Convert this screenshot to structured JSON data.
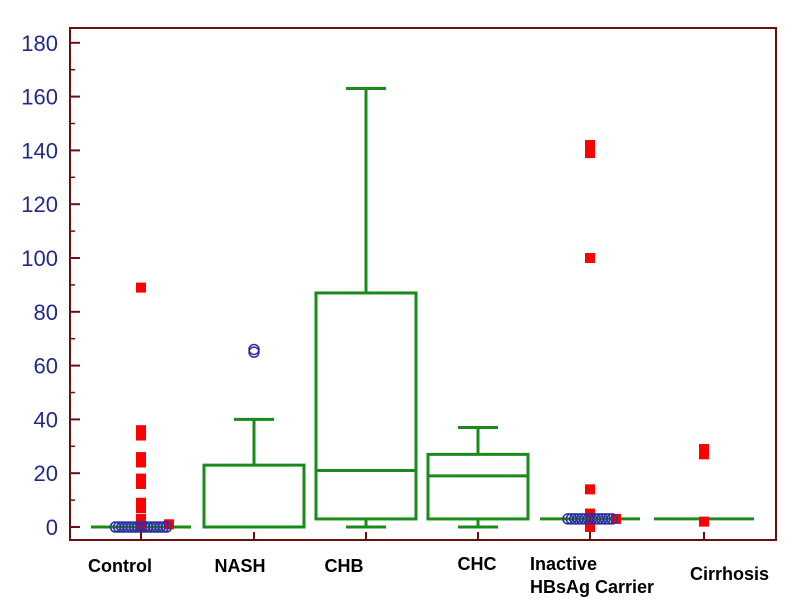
{
  "chart_data": {
    "type": "box",
    "categories": [
      "Control",
      "NASH",
      "CHB",
      "CHC",
      "Inactive\nHBsAg Carrier",
      "Cirrhosis"
    ],
    "ylim": [
      -5,
      185
    ],
    "yticks": [
      0,
      20,
      40,
      60,
      80,
      100,
      120,
      140,
      160,
      180
    ],
    "grid": false,
    "colors": {
      "frame": "#6b0f0f",
      "box": "#1a8a1a",
      "outlier_far": "#ff0000",
      "outlier_near": "#2b2fa0",
      "tick_label": "#1f2a8a"
    },
    "boxes": [
      {
        "min": 0,
        "q1": 0,
        "median": 0,
        "q3": 0,
        "max": 0
      },
      {
        "min": 0,
        "q1": 0,
        "median": 0,
        "q3": 23,
        "max": 40
      },
      {
        "min": 0,
        "q1": 3,
        "median": 21,
        "q3": 87,
        "max": 163
      },
      {
        "min": 0,
        "q1": 3,
        "median": 19,
        "q3": 27,
        "max": 37
      },
      {
        "min": 3,
        "q1": 3,
        "median": 3,
        "q3": 3,
        "max": 3
      },
      {
        "min": 3,
        "q1": 3,
        "median": 3,
        "q3": 3,
        "max": 3
      }
    ],
    "outliers": [
      {
        "category": 0,
        "style": "far",
        "values": [
          89,
          36,
          34,
          26,
          24,
          18,
          16,
          9,
          7,
          3,
          1,
          0
        ]
      },
      {
        "category": 0,
        "style": "near",
        "values": [
          0,
          0,
          0,
          0,
          0,
          0,
          0,
          0,
          0,
          0,
          0,
          0,
          0,
          0,
          0,
          0,
          0
        ]
      },
      {
        "category": 1,
        "style": "near",
        "values": [
          65,
          66
        ]
      },
      {
        "category": 4,
        "style": "far",
        "values": [
          142,
          139,
          100,
          14,
          5,
          3,
          1,
          0
        ]
      },
      {
        "category": 4,
        "style": "near",
        "values": [
          3,
          3,
          3,
          3,
          3,
          3,
          3,
          3,
          3,
          3,
          3,
          3,
          3,
          3
        ]
      },
      {
        "category": 5,
        "style": "far",
        "values": [
          29,
          27,
          2
        ]
      }
    ]
  }
}
